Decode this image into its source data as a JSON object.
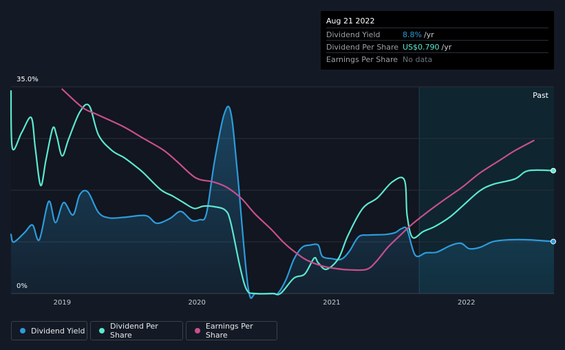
{
  "tooltip": {
    "date": "Aug 21 2022",
    "rows": [
      {
        "label": "Dividend Yield",
        "value": "8.8%",
        "unit": "/yr",
        "color": "#2d9cdb"
      },
      {
        "label": "Dividend Per Share",
        "value": "US$0.790",
        "unit": "/yr",
        "color": "#5ce8d0"
      },
      {
        "label": "Earnings Per Share",
        "value": "No data",
        "unit": "",
        "color": "#6d737c"
      }
    ]
  },
  "legend": [
    {
      "label": "Dividend Yield",
      "color": "#2d9cdb"
    },
    {
      "label": "Dividend Per Share",
      "color": "#5ce8d0"
    },
    {
      "label": "Earnings Per Share",
      "color": "#c94f8c"
    }
  ],
  "chart_data": {
    "type": "line",
    "y_axis_labels": [
      "35.0%",
      "0%"
    ],
    "ylim": [
      0,
      35
    ],
    "xlim": [
      2018.62,
      2022.65
    ],
    "x_ticks": [
      {
        "value": 2019,
        "label": "2019"
      },
      {
        "value": 2020,
        "label": "2020"
      },
      {
        "value": 2021,
        "label": "2021"
      },
      {
        "value": 2022,
        "label": "2022"
      }
    ],
    "past_start": 2021.65,
    "past_label": "Past",
    "grid": true,
    "series": [
      {
        "name": "Dividend Yield",
        "color": "#2d9cdb",
        "fill": true,
        "points": [
          [
            2018.62,
            10.0
          ],
          [
            2018.64,
            8.7
          ],
          [
            2018.72,
            10.3
          ],
          [
            2018.78,
            11.6
          ],
          [
            2018.83,
            9.1
          ],
          [
            2018.9,
            15.6
          ],
          [
            2018.95,
            12.0
          ],
          [
            2019.01,
            15.4
          ],
          [
            2019.08,
            13.3
          ],
          [
            2019.13,
            16.7
          ],
          [
            2019.19,
            17.2
          ],
          [
            2019.27,
            13.7
          ],
          [
            2019.35,
            12.8
          ],
          [
            2019.46,
            12.9
          ],
          [
            2019.62,
            13.2
          ],
          [
            2019.7,
            11.9
          ],
          [
            2019.8,
            12.7
          ],
          [
            2019.88,
            13.9
          ],
          [
            2019.96,
            12.4
          ],
          [
            2020.02,
            12.5
          ],
          [
            2020.07,
            13.5
          ],
          [
            2020.13,
            22.3
          ],
          [
            2020.2,
            30.2
          ],
          [
            2020.25,
            30.8
          ],
          [
            2020.3,
            20.6
          ],
          [
            2020.38,
            1.0
          ],
          [
            2020.44,
            0.0
          ],
          [
            2020.57,
            0.0
          ],
          [
            2020.6,
            0.0
          ],
          [
            2020.66,
            2.3
          ],
          [
            2020.72,
            5.8
          ],
          [
            2020.78,
            7.8
          ],
          [
            2020.84,
            8.2
          ],
          [
            2020.9,
            8.2
          ],
          [
            2020.93,
            6.3
          ],
          [
            2021.0,
            5.9
          ],
          [
            2021.07,
            5.8
          ],
          [
            2021.13,
            7.1
          ],
          [
            2021.2,
            9.6
          ],
          [
            2021.28,
            9.9
          ],
          [
            2021.4,
            10.0
          ],
          [
            2021.47,
            10.3
          ],
          [
            2021.52,
            11.0
          ],
          [
            2021.56,
            10.8
          ],
          [
            2021.62,
            6.5
          ],
          [
            2021.7,
            6.9
          ],
          [
            2021.78,
            7.0
          ],
          [
            2021.88,
            8.1
          ],
          [
            2021.96,
            8.5
          ],
          [
            2022.02,
            7.6
          ],
          [
            2022.1,
            7.8
          ],
          [
            2022.2,
            8.8
          ],
          [
            2022.32,
            9.1
          ],
          [
            2022.45,
            9.1
          ],
          [
            2022.65,
            8.8
          ]
        ]
      },
      {
        "name": "Dividend Per Share",
        "color": "#5ce8d0",
        "fill": false,
        "points": [
          [
            2018.62,
            34.3
          ],
          [
            2018.63,
            24.6
          ],
          [
            2018.7,
            27.3
          ],
          [
            2018.77,
            29.8
          ],
          [
            2018.8,
            24.7
          ],
          [
            2018.84,
            18.3
          ],
          [
            2018.88,
            22.7
          ],
          [
            2018.93,
            28.0
          ],
          [
            2018.96,
            26.6
          ],
          [
            2019.0,
            23.3
          ],
          [
            2019.05,
            26.3
          ],
          [
            2019.13,
            30.7
          ],
          [
            2019.2,
            31.8
          ],
          [
            2019.27,
            26.8
          ],
          [
            2019.37,
            24.2
          ],
          [
            2019.46,
            23.0
          ],
          [
            2019.53,
            21.8
          ],
          [
            2019.6,
            20.5
          ],
          [
            2019.73,
            17.6
          ],
          [
            2019.82,
            16.5
          ],
          [
            2019.9,
            15.4
          ],
          [
            2019.98,
            14.4
          ],
          [
            2020.05,
            14.8
          ],
          [
            2020.13,
            14.7
          ],
          [
            2020.21,
            14.1
          ],
          [
            2020.25,
            12.1
          ],
          [
            2020.32,
            4.5
          ],
          [
            2020.37,
            0.6
          ],
          [
            2020.43,
            0.0
          ],
          [
            2020.56,
            0.0
          ],
          [
            2020.62,
            0.0
          ],
          [
            2020.72,
            2.6
          ],
          [
            2020.8,
            3.3
          ],
          [
            2020.87,
            6.0
          ],
          [
            2020.9,
            5.2
          ],
          [
            2020.96,
            4.1
          ],
          [
            2021.05,
            5.9
          ],
          [
            2021.12,
            9.8
          ],
          [
            2021.23,
            14.4
          ],
          [
            2021.34,
            16.2
          ],
          [
            2021.45,
            18.9
          ],
          [
            2021.54,
            19.2
          ],
          [
            2021.56,
            13.2
          ],
          [
            2021.6,
            9.5
          ],
          [
            2021.68,
            10.5
          ],
          [
            2021.77,
            11.4
          ],
          [
            2021.88,
            13.0
          ],
          [
            2021.98,
            15.0
          ],
          [
            2022.1,
            17.4
          ],
          [
            2022.2,
            18.5
          ],
          [
            2022.36,
            19.4
          ],
          [
            2022.46,
            20.8
          ],
          [
            2022.65,
            20.8
          ]
        ]
      },
      {
        "name": "Earnings Per Share",
        "color": "#c94f8c",
        "fill": false,
        "points": [
          [
            2019.0,
            34.6
          ],
          [
            2019.15,
            31.5
          ],
          [
            2019.25,
            30.4
          ],
          [
            2019.45,
            28.3
          ],
          [
            2019.6,
            26.3
          ],
          [
            2019.75,
            24.3
          ],
          [
            2019.85,
            22.4
          ],
          [
            2019.99,
            19.6
          ],
          [
            2020.12,
            18.9
          ],
          [
            2020.22,
            18.0
          ],
          [
            2020.33,
            16.1
          ],
          [
            2020.43,
            13.5
          ],
          [
            2020.55,
            10.9
          ],
          [
            2020.65,
            8.5
          ],
          [
            2020.74,
            6.8
          ],
          [
            2020.82,
            5.6
          ],
          [
            2020.94,
            4.6
          ],
          [
            2021.04,
            4.2
          ],
          [
            2021.14,
            4.0
          ],
          [
            2021.26,
            4.1
          ],
          [
            2021.33,
            5.4
          ],
          [
            2021.42,
            7.9
          ],
          [
            2021.52,
            10.1
          ],
          [
            2021.6,
            11.8
          ],
          [
            2021.7,
            13.6
          ],
          [
            2021.8,
            15.3
          ],
          [
            2021.9,
            16.9
          ],
          [
            2021.98,
            18.2
          ],
          [
            2022.1,
            20.4
          ],
          [
            2022.25,
            22.6
          ],
          [
            2022.36,
            24.2
          ],
          [
            2022.5,
            25.9
          ]
        ]
      }
    ]
  }
}
